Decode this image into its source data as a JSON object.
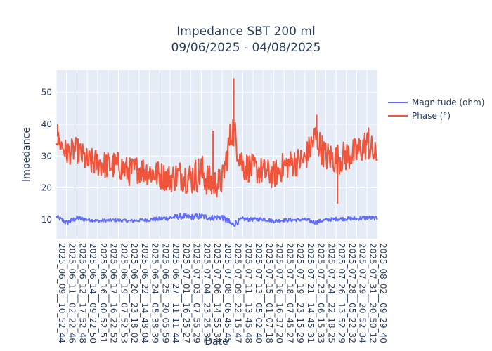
{
  "chart_data": {
    "type": "line",
    "title": "Impedance SBT 200 ml",
    "subtitle": "09/06/2025 - 04/08/2025",
    "xlabel": "Date",
    "ylabel": "Impedance",
    "ylim": [
      4,
      57
    ],
    "yticks": [
      10,
      20,
      30,
      40,
      50
    ],
    "grid": true,
    "legend_position": "top-right",
    "categories": [
      "2025_06_09__10_52_44",
      "2025_06_11__02_22_46",
      "2025_06_12__17_52_48",
      "2025_06_14__09_22_50",
      "2025_06_16__00_52_51",
      "2025_06_17__16_22_52",
      "2025_06_19__07_52_53",
      "2025_06_20__23_18_02",
      "2025_06_22__14_48_04",
      "2025_06_24__05_38_39",
      "2025_06_25__20_05_59",
      "2025_06_27__11_11_44",
      "2025_07_01__16_25_27",
      "2025_07_03__07_55_29",
      "2025_07_04__23_25_31",
      "2025_07_06__14_55_34",
      "2025_07_08__06_45_45",
      "2025_07_09__22_15_47",
      "2025_07_11__13_45_48",
      "2025_07_13__05_02_40",
      "2025_07_15__01_07_18",
      "2025_07_16__16_37_20",
      "2025_07_18__07_45_27",
      "2025_07_19__23_15_29",
      "2025_07_21__14_45_31",
      "2025_07_23__06_15_33",
      "2025_07_24__22_18_25",
      "2025_07_26__13_52_29",
      "2025_07_28__05_22_32",
      "2025_07_29__20_52_34",
      "2025_07_31__20_50_12",
      "2025_08_02__09_29_40"
    ],
    "series": [
      {
        "name": "Magnitude (ohm)",
        "color": "#636efa",
        "values": [
          11,
          9,
          10.5,
          10,
          9.6,
          9.8,
          9.8,
          9.6,
          9.8,
          10,
          10.2,
          10.6,
          11,
          10.8,
          11,
          10.6,
          10.8,
          8.4,
          10.2,
          10,
          10.2,
          9.6,
          9.8,
          9.9,
          10,
          9.2,
          9.9,
          10.2,
          10.3,
          10.3,
          10.6,
          10.4
        ],
        "band": [
          1.2,
          1.6,
          1.6,
          1.0,
          1.0,
          1.0,
          1.0,
          1.0,
          1.0,
          1.2,
          1.4,
          1.6,
          1.8,
          1.8,
          2.0,
          1.8,
          1.8,
          2.2,
          1.4,
          1.2,
          1.2,
          1.2,
          1.0,
          1.0,
          1.0,
          1.4,
          1.0,
          1.2,
          1.2,
          1.2,
          1.4,
          1.2
        ]
      },
      {
        "name": "Phase (°)",
        "color": "#ef553b",
        "values": [
          36,
          31,
          32,
          28,
          28,
          27,
          27,
          25,
          26,
          25,
          24,
          23,
          24,
          23,
          25,
          21,
          22,
          39,
          27,
          26,
          25,
          24,
          27,
          28,
          29,
          36,
          30,
          29,
          30,
          31,
          34,
          29
        ],
        "band": [
          6,
          8,
          8,
          9,
          9,
          9,
          9,
          9,
          9,
          9,
          9,
          9,
          10,
          11,
          12,
          10,
          9,
          12,
          10,
          9,
          9,
          9,
          9,
          9,
          9,
          10,
          10,
          10,
          10,
          10,
          10,
          9
        ]
      }
    ],
    "spikes": [
      {
        "series": "Phase (°)",
        "x": "2025_07_09__22_15_47",
        "peak": 54.5
      },
      {
        "series": "Phase (°)",
        "x": "2025_06_09__10_52_44",
        "peak": 40
      },
      {
        "series": "Phase (°)",
        "x": "2025_07_06__14_55_34",
        "peak": 38
      },
      {
        "series": "Phase (°)",
        "x": "2025_07_23__06_15_33",
        "peak": 43
      },
      {
        "series": "Phase (°)",
        "x": "2025_07_26__13_52_29",
        "peak": 15,
        "dip": true
      },
      {
        "series": "Phase (°)",
        "x": "2025_07_31__20_50_12",
        "peak": 39
      }
    ]
  }
}
